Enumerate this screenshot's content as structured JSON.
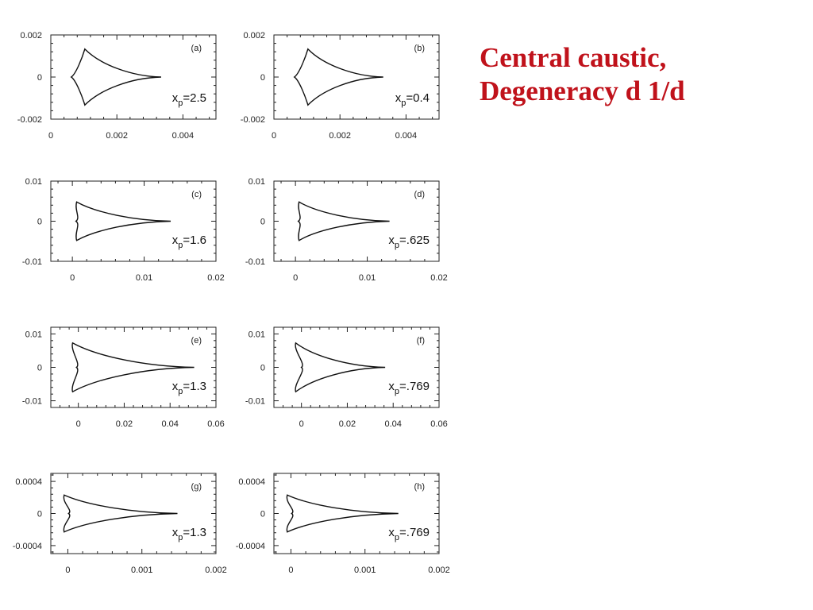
{
  "slide": {
    "title_line1": "Central caustic,",
    "title_line2": "Degeneracy d 1/d",
    "title_color": "#c0121b"
  },
  "chart_data": [
    {
      "type": "line",
      "panel_label": "(a)",
      "annotation_main": "x",
      "annotation_sub": "p",
      "annotation_value": "=2.5",
      "xlim": [
        0,
        0.005
      ],
      "ylim": [
        -0.002,
        0.002
      ],
      "xticks": [
        0,
        0.002,
        0.004
      ],
      "xtick_labels": [
        "0",
        "0.002",
        "0.004"
      ],
      "yticks": [
        -0.002,
        0,
        0.002
      ],
      "ytick_labels": [
        "-0.002",
        "0",
        "0.002"
      ],
      "caustic": {
        "left_x": 0.00062,
        "cusp_x": 0.00103,
        "cusp_y": 0.00133,
        "tip_x": 0.00334
      }
    },
    {
      "type": "line",
      "panel_label": "(b)",
      "annotation_main": "x",
      "annotation_sub": "p",
      "annotation_value": "=0.4",
      "xlim": [
        0,
        0.005
      ],
      "ylim": [
        -0.002,
        0.002
      ],
      "xticks": [
        0,
        0.002,
        0.004
      ],
      "xtick_labels": [
        "0",
        "0.002",
        "0.004"
      ],
      "yticks": [
        -0.002,
        0,
        0.002
      ],
      "ytick_labels": [
        "-0.002",
        "0",
        "0.002"
      ],
      "caustic": {
        "left_x": 0.00062,
        "cusp_x": 0.00103,
        "cusp_y": 0.00133,
        "tip_x": 0.00331
      }
    },
    {
      "type": "line",
      "panel_label": "(c)",
      "annotation_main": "x",
      "annotation_sub": "p",
      "annotation_value": "=1.6",
      "xlim": [
        -0.003,
        0.02
      ],
      "ylim": [
        -0.01,
        0.01
      ],
      "xticks": [
        0,
        0.01,
        0.02
      ],
      "xtick_labels": [
        "0",
        "0.01",
        "0.02"
      ],
      "yticks": [
        -0.01,
        0,
        0.01
      ],
      "ytick_labels": [
        "-0.01",
        "0",
        "0.01"
      ],
      "caustic": {
        "left_x": 0.0005,
        "cusp_x": 0.0006,
        "cusp_y": 0.0048,
        "tip_x": 0.0137
      }
    },
    {
      "type": "line",
      "panel_label": "(d)",
      "annotation_main": "x",
      "annotation_sub": "p",
      "annotation_value": "=.625",
      "xlim": [
        -0.003,
        0.02
      ],
      "ylim": [
        -0.01,
        0.01
      ],
      "xticks": [
        0,
        0.01,
        0.02
      ],
      "xtick_labels": [
        "0",
        "0.01",
        "0.02"
      ],
      "yticks": [
        -0.01,
        0,
        0.01
      ],
      "ytick_labels": [
        "-0.01",
        "0",
        "0.01"
      ],
      "caustic": {
        "left_x": 0.0004,
        "cusp_x": 0.0005,
        "cusp_y": 0.0048,
        "tip_x": 0.0131
      }
    },
    {
      "type": "line",
      "panel_label": "(e)",
      "annotation_main": "x",
      "annotation_sub": "p",
      "annotation_value": "=1.3",
      "xlim": [
        -0.012,
        0.06
      ],
      "ylim": [
        -0.012,
        0.012
      ],
      "xticks": [
        0,
        0.02,
        0.04,
        0.06
      ],
      "xtick_labels": [
        "0",
        "0.02",
        "0.04",
        "0.06"
      ],
      "yticks": [
        -0.01,
        0,
        0.01
      ],
      "ytick_labels": [
        "-0.01",
        "0",
        "0.01"
      ],
      "caustic": {
        "left_x": -0.0008,
        "cusp_x": -0.0025,
        "cusp_y": 0.0073,
        "tip_x": 0.0505
      }
    },
    {
      "type": "line",
      "panel_label": "(f)",
      "annotation_main": "x",
      "annotation_sub": "p",
      "annotation_value": "=.769",
      "xlim": [
        -0.012,
        0.06
      ],
      "ylim": [
        -0.012,
        0.012
      ],
      "xticks": [
        0,
        0.02,
        0.04,
        0.06
      ],
      "xtick_labels": [
        "0",
        "0.02",
        "0.04",
        "0.06"
      ],
      "yticks": [
        -0.01,
        0,
        0.01
      ],
      "ytick_labels": [
        "-0.01",
        "0",
        "0.01"
      ],
      "caustic": {
        "left_x": 0.0,
        "cusp_x": -0.0025,
        "cusp_y": 0.0073,
        "tip_x": 0.0365
      }
    },
    {
      "type": "line",
      "panel_label": "(g)",
      "annotation_main": "x",
      "annotation_sub": "p",
      "annotation_value": "=1.3",
      "xlim": [
        -0.00023,
        0.002
      ],
      "ylim": [
        -0.0005,
        0.0005
      ],
      "xticks": [
        0,
        0.001,
        0.002
      ],
      "xtick_labels": [
        "0",
        "0.001",
        "0.002"
      ],
      "yticks": [
        -0.0004,
        0,
        0.0004
      ],
      "ytick_labels": [
        "-0.0004",
        "0",
        "0.0004"
      ],
      "caustic": {
        "left_x": 1e-05,
        "cusp_x": -5e-05,
        "cusp_y": 0.00023,
        "tip_x": 0.00148
      }
    },
    {
      "type": "line",
      "panel_label": "(h)",
      "annotation_main": "x",
      "annotation_sub": "p",
      "annotation_value": "=.769",
      "xlim": [
        -0.00023,
        0.002
      ],
      "ylim": [
        -0.0005,
        0.0005
      ],
      "xticks": [
        0,
        0.001,
        0.002
      ],
      "xtick_labels": [
        "0",
        "0.001",
        "0.002"
      ],
      "yticks": [
        -0.0004,
        0,
        0.0004
      ],
      "ytick_labels": [
        "-0.0004",
        "0",
        "0.0004"
      ],
      "caustic": {
        "left_x": 1e-05,
        "cusp_x": -5e-05,
        "cusp_y": 0.00023,
        "tip_x": 0.00145
      }
    }
  ]
}
